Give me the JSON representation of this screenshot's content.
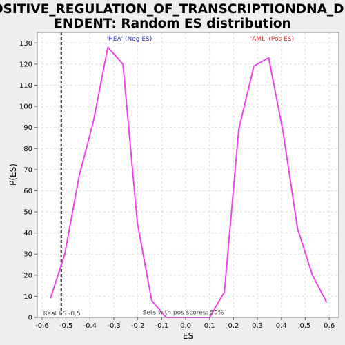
{
  "chart_data": {
    "type": "line",
    "title_lines": [
      "POSITIVE_REGULATION_OF_TRANSCRIPTIONDNA_DEP",
      "ENDENT: Random ES distribution"
    ],
    "xlabel": "ES",
    "ylabel": "P(ES)",
    "xlim": [
      -0.62,
      0.64
    ],
    "ylim": [
      0,
      135
    ],
    "xticks": [
      -0.6,
      -0.5,
      -0.4,
      -0.3,
      -0.2,
      -0.1,
      0.0,
      0.1,
      0.2,
      0.3,
      0.4,
      0.5,
      0.6
    ],
    "xtick_labels": [
      "-0,6",
      "-0,5",
      "-0,4",
      "-0,3",
      "-0,2",
      "-0,1",
      "0,0",
      "0,1",
      "0,2",
      "0,3",
      "0,4",
      "0,5",
      "0,6"
    ],
    "yticks": [
      0,
      10,
      20,
      30,
      40,
      50,
      60,
      70,
      80,
      90,
      100,
      110,
      120,
      130
    ],
    "grid": true,
    "series": [
      {
        "color": "#ee44ee",
        "x": [
          -0.565,
          -0.505,
          -0.445,
          -0.385,
          -0.325,
          -0.262,
          -0.202,
          -0.142,
          -0.082,
          -0.022,
          0.04,
          0.1,
          0.162,
          0.222,
          0.285,
          0.347,
          0.407,
          0.468,
          0.53,
          0.59
        ],
        "y": [
          9,
          30,
          67,
          93,
          128,
          120,
          45,
          8,
          0,
          0,
          0,
          0,
          12,
          89,
          119,
          123,
          88,
          42,
          20,
          7
        ]
      }
    ],
    "real_es_line": {
      "x": -0.52,
      "color": "#000000",
      "style": "dashed"
    },
    "annotations": [
      {
        "text": "'HEA' (Neg ES)",
        "x": -0.33,
        "y": 131,
        "color": "#3333cc"
      },
      {
        "text": "'AML' (Pos ES)",
        "x": 0.27,
        "y": 131,
        "color": "#dd3333"
      },
      {
        "text": "Real ES -0.5",
        "x": -0.595,
        "y": 0.9,
        "color": "#444444"
      },
      {
        "text": "Sets with pos scores: 50%",
        "x": -0.18,
        "y": 1.5,
        "color": "#444444"
      }
    ]
  }
}
